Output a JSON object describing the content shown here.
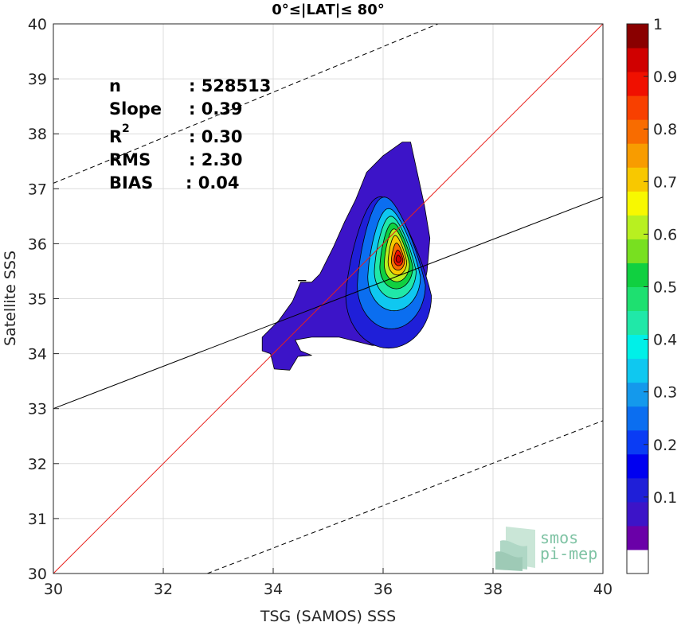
{
  "chart_data": {
    "type": "heatmap",
    "title": "0°≤|LAT|≤ 80°",
    "xlabel": "TSG (SAMOS) SSS",
    "ylabel": "Satellite SSS",
    "xlim": [
      30,
      40
    ],
    "ylim": [
      30,
      40
    ],
    "xticks": [
      "30",
      "32",
      "34",
      "36",
      "38",
      "40"
    ],
    "yticks": [
      "30",
      "31",
      "32",
      "33",
      "34",
      "35",
      "36",
      "37",
      "38",
      "39",
      "40"
    ],
    "grid": true,
    "stats": [
      {
        "label": "n",
        "value": ": 528513"
      },
      {
        "label": "Slope",
        "value": ": 0.39"
      },
      {
        "label": "R",
        "sup": "2",
        "value": ": 0.30"
      },
      {
        "label": "RMS",
        "value": ": 2.30"
      },
      {
        "label": "BIAS",
        "value": ": 0.04"
      }
    ],
    "lines": [
      {
        "name": "one-to-one",
        "color": "#e8201c",
        "dash": false,
        "x": [
          30,
          40
        ],
        "y": [
          30,
          40
        ]
      },
      {
        "name": "fit",
        "color": "#000000",
        "dash": false,
        "x": [
          30,
          40
        ],
        "y": [
          33.0,
          36.85
        ]
      },
      {
        "name": "upper-bound",
        "color": "#000000",
        "dash": true,
        "x": [
          30,
          37.0
        ],
        "y": [
          37.1,
          40.0
        ]
      },
      {
        "name": "lower-bound",
        "color": "#000000",
        "dash": true,
        "x": [
          32.8,
          40
        ],
        "y": [
          30.0,
          32.78
        ]
      }
    ],
    "density_peak": {
      "x": 36.28,
      "y": 35.72
    },
    "colorbar": {
      "ticks": [
        "0.1",
        "0.2",
        "0.3",
        "0.4",
        "0.5",
        "0.6",
        "0.7",
        "0.8",
        "0.9",
        "1"
      ],
      "levels": [
        0.05,
        0.1,
        0.15,
        0.2,
        0.25,
        0.3,
        0.35,
        0.4,
        0.45,
        0.5,
        0.55,
        0.6,
        0.65,
        0.7,
        0.75,
        0.8,
        0.85,
        0.9,
        0.95,
        1.0
      ],
      "colors": [
        "#ffffff",
        "#6a00a8",
        "#3c14c8",
        "#1f1fd8",
        "#0000f0",
        "#0a3cf4",
        "#0b6ef0",
        "#1499ec",
        "#0fc8f0",
        "#00f0e8",
        "#20e8a8",
        "#1ee070",
        "#10d040",
        "#78e020",
        "#b8f020",
        "#f8f800",
        "#f8c800",
        "#f89c00",
        "#f86c00",
        "#f84000",
        "#f01000",
        "#d00000",
        "#8a0000"
      ]
    },
    "logo": {
      "line1": "smos",
      "line2": "pi-mep"
    }
  }
}
